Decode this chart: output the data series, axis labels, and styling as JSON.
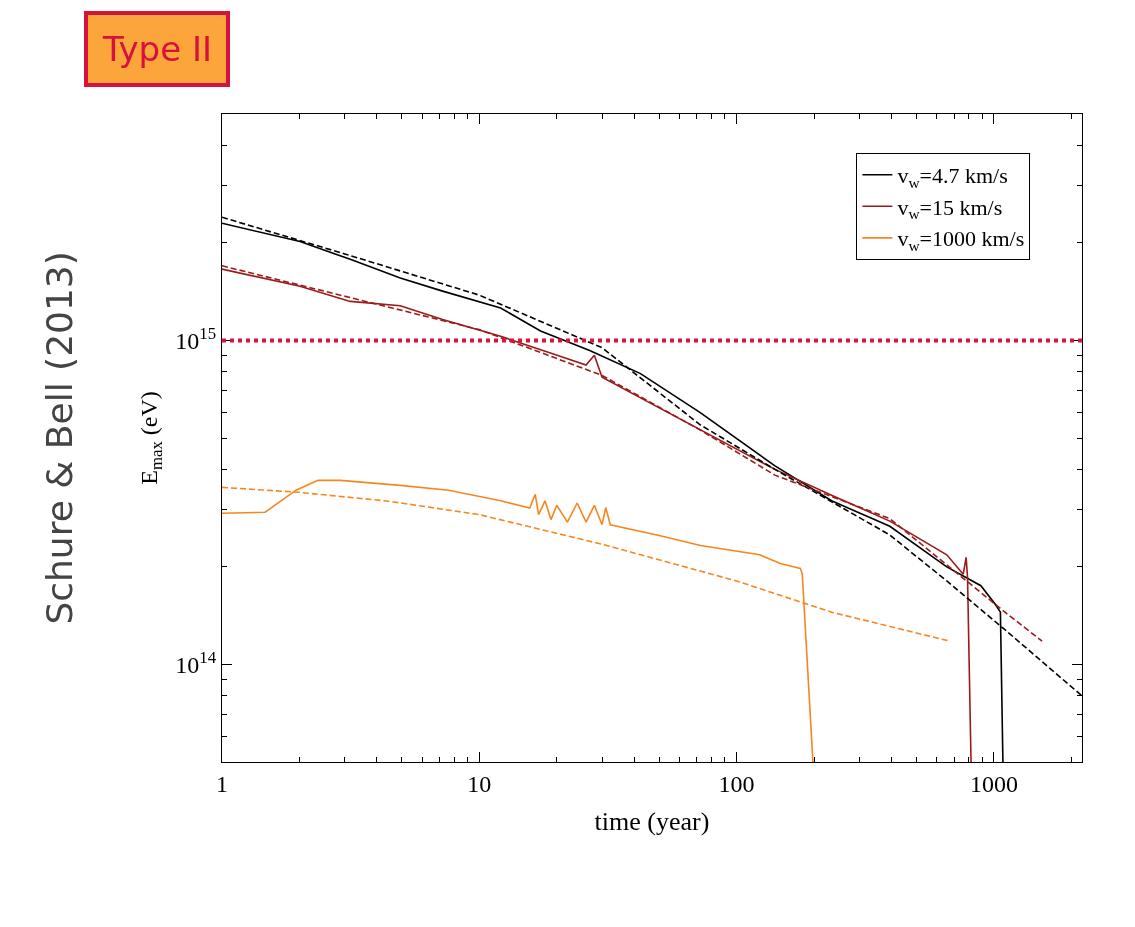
{
  "chart_data": {
    "type": "line",
    "xlabel": "time (year)",
    "ylabel": "E$_{max}$ (eV)",
    "log": "xy",
    "xlim": [
      1,
      2200
    ],
    "ylim": [
      50000000000000.0,
      5000000000000000.0
    ],
    "xticks": [
      1,
      10,
      100,
      1000
    ],
    "yticks": [
      {
        "value": 100000000000000.0,
        "label": "10$^{14}$"
      },
      {
        "value": 1000000000000000.0,
        "label": "10$^{15}$"
      }
    ],
    "legend": "top right",
    "marker": "none",
    "annotations": [
      "Type II",
      "Schure & Bell (2013)"
    ],
    "ref_lines": [
      {
        "axis": "y",
        "value": 1000000000000000.0,
        "label": null,
        "color": "#e0103a",
        "line_style": "dotted"
      }
    ],
    "series": [
      {
        "name": "v$_{w}$=4.7 km/s",
        "color": "#000000",
        "line_style": "solid",
        "x": [
          1,
          2.01,
          3.15,
          4.93,
          7.2,
          12.1,
          17.3,
          27,
          42.3,
          72,
          141,
          234,
          394,
          656,
          890,
          1009,
          1060,
          1084
        ],
        "values": [
          2300000000000000.0,
          2020000000000000.0,
          1780000000000000.0,
          1560000000000000.0,
          1420000000000000.0,
          1260000000000000.0,
          1070000000000000.0,
          930000000000000.0,
          790000000000000.0,
          600000000000000.0,
          410000000000000.0,
          320000000000000.0,
          267000000000000.0,
          200000000000000.0,
          175000000000000.0,
          154000000000000.0,
          145000000000000.0,
          50000000000000.0
        ]
      },
      {
        "name": "v$_{w}$=15 km/s",
        "color": "#9b1b1b",
        "line_style": "solid",
        "x": [
          1,
          2.01,
          3.15,
          4.93,
          7.2,
          12.1,
          18.9,
          26,
          28,
          30,
          49,
          141,
          234,
          394,
          656,
          760,
          780,
          790,
          815
        ],
        "values": [
          1660000000000000.0,
          1470000000000000.0,
          1320000000000000.0,
          1280000000000000.0,
          1160000000000000.0,
          1030000000000000.0,
          915000000000000.0,
          840000000000000.0,
          900000000000000.0,
          770000000000000.0,
          625000000000000.0,
          400000000000000.0,
          333000000000000.0,
          277000000000000.0,
          218000000000000.0,
          190000000000000.0,
          214000000000000.0,
          185000000000000.0,
          50000000000000.0
        ]
      },
      {
        "name": "v$_{w}$=1000 km/s",
        "color": "#f7861f",
        "line_style": "solid",
        "x": [
          1,
          1.47,
          1.94,
          2.36,
          2.88,
          4.93,
          7.6,
          12.1,
          15.7,
          16.5,
          17,
          18,
          19,
          20,
          22,
          24,
          26,
          28,
          30,
          31,
          32.3,
          50,
          72.4,
          123,
          148,
          177,
          180,
          198
        ],
        "values": [
          293000000000000.0,
          295000000000000.0,
          345000000000000.0,
          370000000000000.0,
          370000000000000.0,
          357000000000000.0,
          345000000000000.0,
          320000000000000.0,
          304000000000000.0,
          335000000000000.0,
          290000000000000.0,
          320000000000000.0,
          280000000000000.0,
          310000000000000.0,
          275000000000000.0,
          315000000000000.0,
          275000000000000.0,
          310000000000000.0,
          270000000000000.0,
          305000000000000.0,
          270000000000000.0,
          250000000000000.0,
          233000000000000.0,
          218000000000000.0,
          205000000000000.0,
          198000000000000.0,
          190000000000000.0,
          50000000000000.0
        ]
      },
      {
        "color": "#000000",
        "line_style": "dashed",
        "x": [
          1,
          3,
          10,
          30,
          72,
          141,
          394,
          656,
          1104,
          2200
        ],
        "values": [
          2400000000000000.0,
          1850000000000000.0,
          1380000000000000.0,
          950000000000000.0,
          550000000000000.0,
          400000000000000.0,
          251000000000000.0,
          181000000000000.0,
          128000000000000.0,
          80000000000000.0
        ]
      },
      {
        "color": "#9b1b1b",
        "line_style": "dashed",
        "x": [
          1,
          10,
          30,
          72,
          141,
          394,
          1104,
          1540
        ],
        "values": [
          1700000000000000.0,
          1080000000000000.0,
          780000000000000.0,
          530000000000000.0,
          384000000000000.0,
          282000000000000.0,
          145000000000000.0,
          118000000000000.0
        ]
      },
      {
        "color": "#f7861f",
        "line_style": "dashed",
        "x": [
          1,
          1.98,
          4.46,
          10,
          30,
          100,
          234,
          675
        ],
        "values": [
          352000000000000.0,
          340000000000000.0,
          319000000000000.0,
          290000000000000.0,
          235000000000000.0,
          181000000000000.0,
          145000000000000.0,
          118000000000000.0
        ]
      }
    ]
  }
}
